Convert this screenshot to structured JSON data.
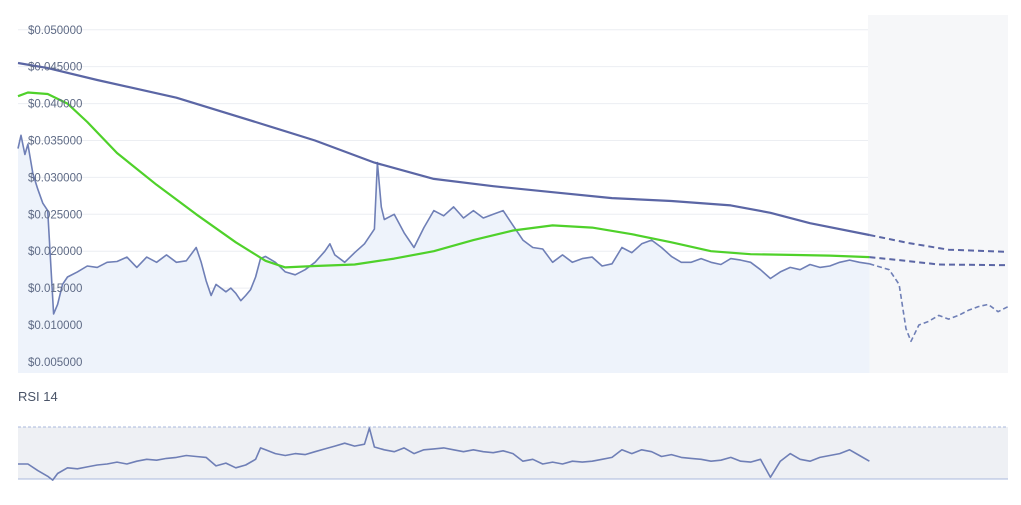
{
  "chart_data": [
    {
      "type": "line",
      "title": "",
      "y_ticks": [
        "$0.050000",
        "$0.045000",
        "$0.040000",
        "$0.035000",
        "$0.030000",
        "$0.025000",
        "$0.020000",
        "$0.015000",
        "$0.010000",
        "$0.005000"
      ],
      "tick_values": [
        0.05,
        0.045,
        0.04,
        0.035,
        0.03,
        0.025,
        0.02,
        0.015,
        0.01,
        0.005
      ],
      "ylim": [
        0.0035,
        0.052
      ],
      "grid": true,
      "colors": {
        "price": "#6f7fb6",
        "ma_long": "#5b66a5",
        "ma_short": "#4fd12a",
        "area": "#eef3fb",
        "future_band": "#f6f7f9"
      },
      "series": [
        {
          "key": "price",
          "points": [
            [
              0,
              0.0339
            ],
            [
              0.3,
              0.0357
            ],
            [
              0.7,
              0.0331
            ],
            [
              1,
              0.0345
            ],
            [
              1.5,
              0.0305
            ],
            [
              2,
              0.0284
            ],
            [
              2.5,
              0.0265
            ],
            [
              3,
              0.0255
            ],
            [
              3.6,
              0.0115
            ],
            [
              4,
              0.0128
            ],
            [
              4.5,
              0.0155
            ],
            [
              5,
              0.0165
            ],
            [
              6,
              0.0172
            ],
            [
              7,
              0.018
            ],
            [
              8,
              0.0178
            ],
            [
              9,
              0.0185
            ],
            [
              10,
              0.0186
            ],
            [
              11,
              0.0192
            ],
            [
              12,
              0.0178
            ],
            [
              13,
              0.0192
            ],
            [
              14,
              0.0185
            ],
            [
              15,
              0.0195
            ],
            [
              16,
              0.0185
            ],
            [
              17,
              0.0187
            ],
            [
              18,
              0.0205
            ],
            [
              18.5,
              0.0185
            ],
            [
              19,
              0.016
            ],
            [
              19.5,
              0.014
            ],
            [
              20,
              0.0155
            ],
            [
              21,
              0.0145
            ],
            [
              21.5,
              0.015
            ],
            [
              22,
              0.0143
            ],
            [
              22.5,
              0.0133
            ],
            [
              23,
              0.014
            ],
            [
              23.5,
              0.0148
            ],
            [
              24,
              0.0165
            ],
            [
              24.5,
              0.019
            ],
            [
              25,
              0.0193
            ],
            [
              26,
              0.0185
            ],
            [
              27,
              0.0172
            ],
            [
              28,
              0.0168
            ],
            [
              29,
              0.0175
            ],
            [
              30,
              0.0185
            ],
            [
              31,
              0.02
            ],
            [
              31.5,
              0.021
            ],
            [
              32,
              0.0195
            ],
            [
              33,
              0.0185
            ],
            [
              34,
              0.0198
            ],
            [
              35,
              0.021
            ],
            [
              36,
              0.023
            ],
            [
              36.3,
              0.032
            ],
            [
              36.7,
              0.026
            ],
            [
              37,
              0.0243
            ],
            [
              38,
              0.025
            ],
            [
              39,
              0.0225
            ],
            [
              40,
              0.0205
            ],
            [
              41,
              0.0232
            ],
            [
              42,
              0.0255
            ],
            [
              43,
              0.0248
            ],
            [
              44,
              0.026
            ],
            [
              45,
              0.0245
            ],
            [
              46,
              0.0255
            ],
            [
              47,
              0.0245
            ],
            [
              48,
              0.025
            ],
            [
              49,
              0.0255
            ],
            [
              50,
              0.0235
            ],
            [
              51,
              0.0215
            ],
            [
              52,
              0.0205
            ],
            [
              53,
              0.0203
            ],
            [
              54,
              0.0185
            ],
            [
              55,
              0.0195
            ],
            [
              56,
              0.0185
            ],
            [
              57,
              0.019
            ],
            [
              58,
              0.0192
            ],
            [
              59,
              0.018
            ],
            [
              60,
              0.0183
            ],
            [
              61,
              0.0205
            ],
            [
              62,
              0.0198
            ],
            [
              63,
              0.021
            ],
            [
              64,
              0.0215
            ],
            [
              65,
              0.0205
            ],
            [
              66,
              0.0193
            ],
            [
              67,
              0.0185
            ],
            [
              68,
              0.0185
            ],
            [
              69,
              0.019
            ],
            [
              70,
              0.0185
            ],
            [
              71,
              0.0182
            ],
            [
              72,
              0.019
            ],
            [
              73,
              0.0188
            ],
            [
              74,
              0.0185
            ],
            [
              75,
              0.0175
            ],
            [
              76,
              0.0163
            ],
            [
              77,
              0.0172
            ],
            [
              78,
              0.0178
            ],
            [
              79,
              0.0175
            ],
            [
              80,
              0.0182
            ],
            [
              81,
              0.0178
            ],
            [
              82,
              0.018
            ],
            [
              83,
              0.0185
            ],
            [
              84,
              0.0188
            ],
            [
              85,
              0.0185
            ],
            [
              86,
              0.0183
            ]
          ]
        },
        {
          "key": "price_forecast",
          "points": [
            [
              86,
              0.0183
            ],
            [
              88,
              0.0175
            ],
            [
              89,
              0.0155
            ],
            [
              89.7,
              0.0095
            ],
            [
              90.2,
              0.0078
            ],
            [
              91,
              0.01
            ],
            [
              92,
              0.0105
            ],
            [
              93,
              0.0113
            ],
            [
              94,
              0.0108
            ],
            [
              95,
              0.0113
            ],
            [
              96,
              0.012
            ],
            [
              97,
              0.0125
            ],
            [
              98,
              0.0128
            ],
            [
              99,
              0.0118
            ],
            [
              100,
              0.0125
            ]
          ]
        },
        {
          "key": "ma_long",
          "points": [
            [
              0,
              0.0455
            ],
            [
              3,
              0.0448
            ],
            [
              8,
              0.0432
            ],
            [
              16,
              0.0408
            ],
            [
              24,
              0.0375
            ],
            [
              30,
              0.035
            ],
            [
              36,
              0.032
            ],
            [
              42,
              0.0298
            ],
            [
              48,
              0.0288
            ],
            [
              54,
              0.028
            ],
            [
              60,
              0.0272
            ],
            [
              66,
              0.0268
            ],
            [
              72,
              0.0262
            ],
            [
              76,
              0.0252
            ],
            [
              80,
              0.0238
            ],
            [
              86,
              0.0222
            ]
          ]
        },
        {
          "key": "ma_long_forecast",
          "points": [
            [
              86,
              0.0222
            ],
            [
              90,
              0.0211
            ],
            [
              94,
              0.0202
            ],
            [
              100,
              0.0199
            ]
          ]
        },
        {
          "key": "ma_short",
          "points": [
            [
              0,
              0.041
            ],
            [
              1,
              0.0415
            ],
            [
              3,
              0.0413
            ],
            [
              5,
              0.04
            ],
            [
              7,
              0.0375
            ],
            [
              10,
              0.0333
            ],
            [
              14,
              0.029
            ],
            [
              18,
              0.025
            ],
            [
              22,
              0.0212
            ],
            [
              25,
              0.0187
            ],
            [
              27,
              0.0178
            ],
            [
              30,
              0.018
            ],
            [
              34,
              0.0182
            ],
            [
              38,
              0.019
            ],
            [
              42,
              0.02
            ],
            [
              46,
              0.0215
            ],
            [
              50,
              0.0228
            ],
            [
              54,
              0.0235
            ],
            [
              58,
              0.0232
            ],
            [
              62,
              0.0223
            ],
            [
              66,
              0.0212
            ],
            [
              70,
              0.02
            ],
            [
              74,
              0.0196
            ],
            [
              78,
              0.0195
            ],
            [
              82,
              0.0194
            ],
            [
              86,
              0.0192
            ]
          ]
        },
        {
          "key": "ma_short_forecast",
          "points": [
            [
              86,
              0.0192
            ],
            [
              89,
              0.0188
            ],
            [
              93,
              0.0182
            ],
            [
              100,
              0.0181
            ]
          ]
        }
      ]
    },
    {
      "type": "line",
      "title": "RSI 14",
      "ylim": [
        18,
        92
      ],
      "band": [
        30,
        70
      ],
      "colors": {
        "line": "#6f7fb6",
        "band": "#eef0f4",
        "band_line": "#a9b8dc"
      },
      "series": [
        {
          "key": "rsi",
          "points": [
            [
              0,
              37
            ],
            [
              1,
              37
            ],
            [
              2,
              30
            ],
            [
              3,
              24
            ],
            [
              3.5,
              20
            ],
            [
              4,
              27
            ],
            [
              5,
              33
            ],
            [
              6,
              32
            ],
            [
              7,
              34
            ],
            [
              8,
              36
            ],
            [
              9,
              37
            ],
            [
              10,
              39
            ],
            [
              11,
              37
            ],
            [
              12,
              40
            ],
            [
              13,
              42
            ],
            [
              14,
              41
            ],
            [
              15,
              43
            ],
            [
              16,
              44
            ],
            [
              17,
              46
            ],
            [
              18,
              45
            ],
            [
              19,
              44
            ],
            [
              20,
              35
            ],
            [
              21,
              38
            ],
            [
              22,
              33
            ],
            [
              23,
              36
            ],
            [
              24,
              42
            ],
            [
              24.5,
              54
            ],
            [
              25,
              52
            ],
            [
              26,
              48
            ],
            [
              27,
              46
            ],
            [
              28,
              48
            ],
            [
              29,
              47
            ],
            [
              30,
              50
            ],
            [
              31,
              53
            ],
            [
              32,
              56
            ],
            [
              33,
              59
            ],
            [
              34,
              56
            ],
            [
              35,
              58
            ],
            [
              35.5,
              75
            ],
            [
              36,
              55
            ],
            [
              37,
              52
            ],
            [
              38,
              50
            ],
            [
              39,
              54
            ],
            [
              40,
              48
            ],
            [
              41,
              52
            ],
            [
              42,
              53
            ],
            [
              43,
              54
            ],
            [
              44,
              52
            ],
            [
              45,
              50
            ],
            [
              46,
              52
            ],
            [
              47,
              50
            ],
            [
              48,
              49
            ],
            [
              49,
              51
            ],
            [
              50,
              48
            ],
            [
              51,
              40
            ],
            [
              52,
              42
            ],
            [
              53,
              37
            ],
            [
              54,
              39
            ],
            [
              55,
              37
            ],
            [
              56,
              40
            ],
            [
              57,
              39
            ],
            [
              58,
              40
            ],
            [
              59,
              42
            ],
            [
              60,
              44
            ],
            [
              61,
              52
            ],
            [
              62,
              48
            ],
            [
              63,
              52
            ],
            [
              64,
              50
            ],
            [
              65,
              45
            ],
            [
              66,
              47
            ],
            [
              67,
              44
            ],
            [
              68,
              43
            ],
            [
              69,
              42
            ],
            [
              70,
              40
            ],
            [
              71,
              41
            ],
            [
              72,
              44
            ],
            [
              73,
              40
            ],
            [
              74,
              39
            ],
            [
              75,
              42
            ],
            [
              76,
              23
            ],
            [
              77,
              40
            ],
            [
              78,
              48
            ],
            [
              79,
              42
            ],
            [
              80,
              40
            ],
            [
              81,
              44
            ],
            [
              82,
              46
            ],
            [
              83,
              48
            ],
            [
              84,
              52
            ],
            [
              85,
              46
            ],
            [
              86,
              40
            ]
          ]
        }
      ],
      "label": "RSI 14"
    }
  ]
}
